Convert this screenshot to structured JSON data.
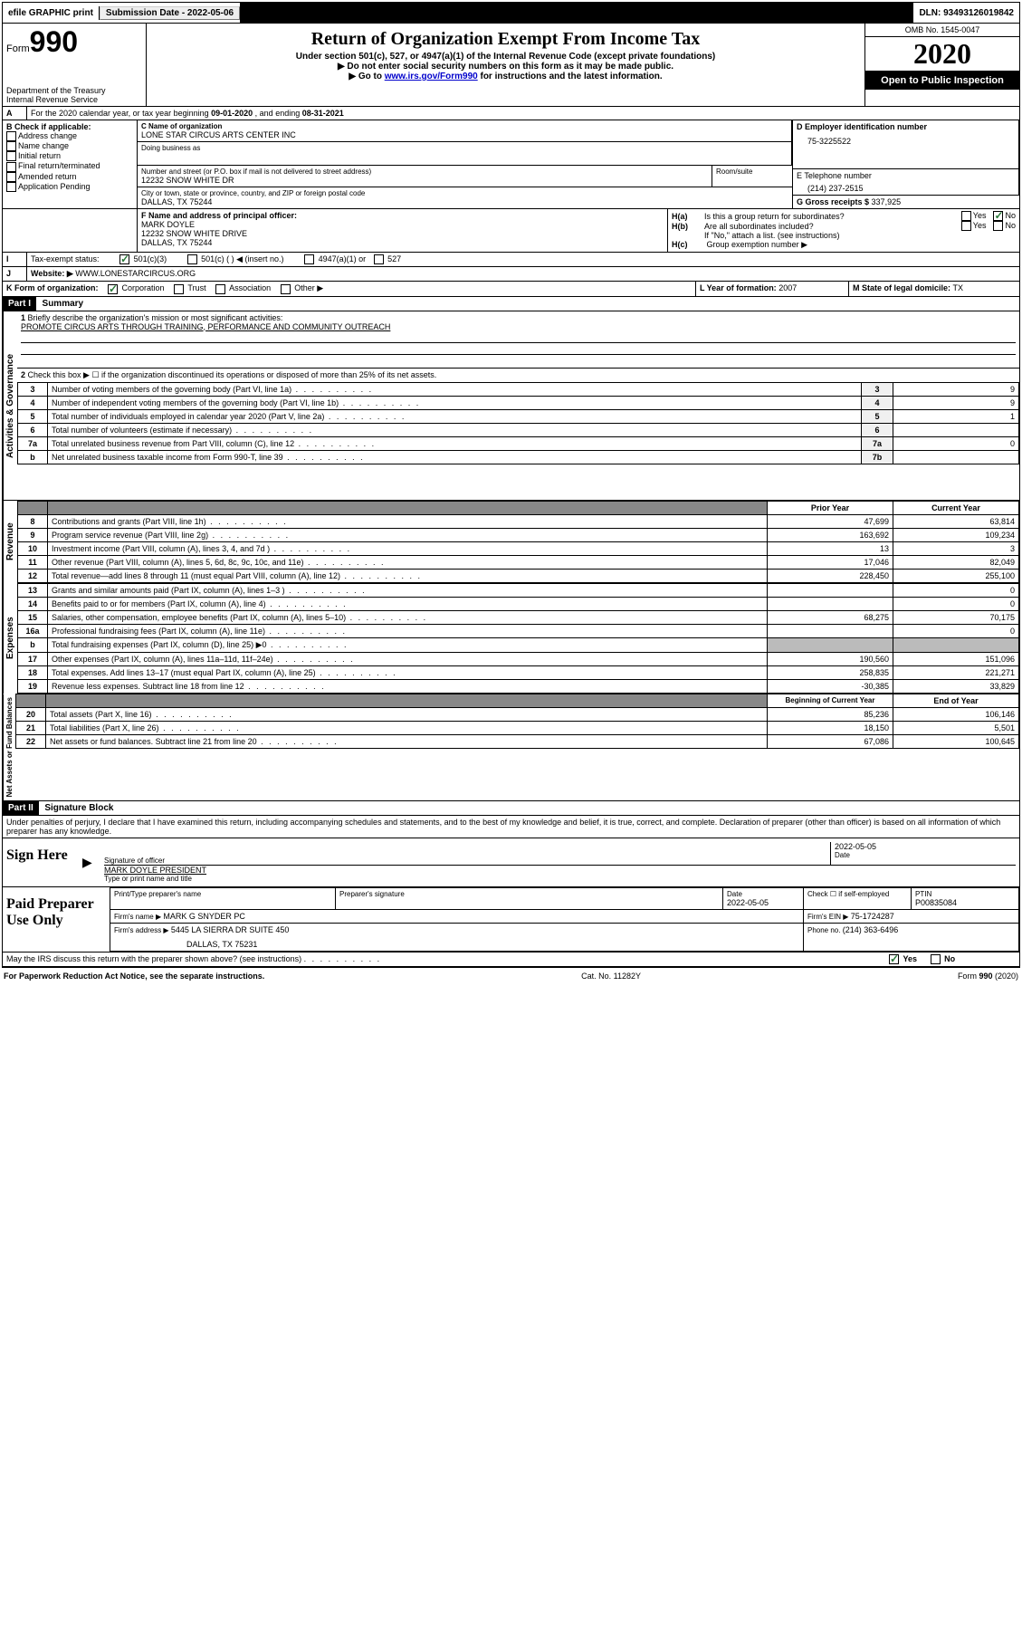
{
  "topbar": {
    "efile": "efile GRAPHIC print",
    "subdate_label": "Submission Date - ",
    "subdate": "2022-05-06",
    "dln_label": "DLN: ",
    "dln": "93493126019842"
  },
  "header": {
    "form_small": "Form",
    "form_big": "990",
    "dept1": "Department of the Treasury",
    "dept2": "Internal Revenue Service",
    "title": "Return of Organization Exempt From Income Tax",
    "sub1": "Under section 501(c), 527, or 4947(a)(1) of the Internal Revenue Code (except private foundations)",
    "sub2": "▶ Do not enter social security numbers on this form as it may be made public.",
    "sub3_pre": "▶ Go to ",
    "sub3_link": "www.irs.gov/Form990",
    "sub3_post": " for instructions and the latest information.",
    "omb": "OMB No. 1545-0047",
    "year": "2020",
    "inspection": "Open to Public Inspection"
  },
  "lineA": {
    "text_pre": "For the 2020 calendar year, or tax year beginning ",
    "beg": "09-01-2020",
    "mid": " , and ending ",
    "end": "08-31-2021"
  },
  "boxB": {
    "label": "B Check if applicable:",
    "opts": [
      "Address change",
      "Name change",
      "Initial return",
      "Final return/terminated",
      "Amended return",
      "Application Pending"
    ]
  },
  "boxC": {
    "name_label": "C Name of organization",
    "name": "LONE STAR CIRCUS ARTS CENTER INC",
    "dba_label": "Doing business as",
    "dba": "",
    "street_label": "Number and street (or P.O. box if mail is not delivered to street address)",
    "room_label": "Room/suite",
    "street": "12232 SNOW WHITE DR",
    "city_label": "City or town, state or province, country, and ZIP or foreign postal code",
    "city": "DALLAS, TX  75244"
  },
  "boxD": {
    "label": "D Employer identification number",
    "value": "75-3225522"
  },
  "boxE": {
    "label": "E Telephone number",
    "value": "(214) 237-2515"
  },
  "boxG": {
    "label": "G Gross receipts $ ",
    "value": "337,925"
  },
  "boxF": {
    "label": "F Name and address of principal officer:",
    "name": "MARK DOYLE",
    "addr1": "12232 SNOW WHITE DRIVE",
    "addr2": "DALLAS, TX  75244"
  },
  "boxH": {
    "a_label": "H(a)",
    "a_text": "Is this a group return for subordinates?",
    "b_label": "H(b)",
    "b_text": "Are all subordinates included?",
    "b_note": "If \"No,\" attach a list. (see instructions)",
    "c_label": "H(c)",
    "c_text": "Group exemption number ▶",
    "yes": "Yes",
    "no": "No"
  },
  "lineI": {
    "label": "I",
    "text": "Tax-exempt status:",
    "opts": [
      "501(c)(3)",
      "501(c) (  ) ◀ (insert no.)",
      "4947(a)(1) or",
      "527"
    ]
  },
  "lineJ": {
    "label": "J",
    "text": "Website: ▶",
    "value": "WWW.LONESTARCIRCUS.ORG"
  },
  "lineK": {
    "label": "K Form of organization:",
    "opts": [
      "Corporation",
      "Trust",
      "Association",
      "Other ▶"
    ]
  },
  "lineL": {
    "label": "L Year of formation: ",
    "value": "2007"
  },
  "lineM": {
    "label": "M State of legal domicile: ",
    "value": "TX"
  },
  "part1": {
    "header": "Part I",
    "title": "Summary",
    "sections": {
      "gov_label": "Activities & Governance",
      "rev_label": "Revenue",
      "exp_label": "Expenses",
      "net_label": "Net Assets or Fund Balances"
    },
    "l1": {
      "num": "1",
      "text": "Briefly describe the organization's mission or most significant activities:",
      "value": "PROMOTE CIRCUS ARTS THROUGH TRAINING, PERFORMANCE AND COMMUNITY OUTREACH"
    },
    "l2": {
      "num": "2",
      "text": "Check this box ▶ ☐  if the organization discontinued its operations or disposed of more than 25% of its net assets."
    },
    "gov_rows": [
      {
        "num": "3",
        "desc": "Number of voting members of the governing body (Part VI, line 1a)",
        "box": "3",
        "val": "9"
      },
      {
        "num": "4",
        "desc": "Number of independent voting members of the governing body (Part VI, line 1b)",
        "box": "4",
        "val": "9"
      },
      {
        "num": "5",
        "desc": "Total number of individuals employed in calendar year 2020 (Part V, line 2a)",
        "box": "5",
        "val": "1"
      },
      {
        "num": "6",
        "desc": "Total number of volunteers (estimate if necessary)",
        "box": "6",
        "val": ""
      },
      {
        "num": "7a",
        "desc": "Total unrelated business revenue from Part VIII, column (C), line 12",
        "box": "7a",
        "val": "0"
      },
      {
        "num": "b",
        "desc": "Net unrelated business taxable income from Form 990-T, line 39",
        "box": "7b",
        "val": ""
      }
    ],
    "col_headers": {
      "prior": "Prior Year",
      "current": "Current Year",
      "beg": "Beginning of Current Year",
      "end": "End of Year"
    },
    "rev_rows": [
      {
        "num": "8",
        "desc": "Contributions and grants (Part VIII, line 1h)",
        "prior": "47,699",
        "cur": "63,814"
      },
      {
        "num": "9",
        "desc": "Program service revenue (Part VIII, line 2g)",
        "prior": "163,692",
        "cur": "109,234"
      },
      {
        "num": "10",
        "desc": "Investment income (Part VIII, column (A), lines 3, 4, and 7d )",
        "prior": "13",
        "cur": "3"
      },
      {
        "num": "11",
        "desc": "Other revenue (Part VIII, column (A), lines 5, 6d, 8c, 9c, 10c, and 11e)",
        "prior": "17,046",
        "cur": "82,049"
      },
      {
        "num": "12",
        "desc": "Total revenue—add lines 8 through 11 (must equal Part VIII, column (A), line 12)",
        "prior": "228,450",
        "cur": "255,100"
      }
    ],
    "exp_rows": [
      {
        "num": "13",
        "desc": "Grants and similar amounts paid (Part IX, column (A), lines 1–3 )",
        "prior": "",
        "cur": "0"
      },
      {
        "num": "14",
        "desc": "Benefits paid to or for members (Part IX, column (A), line 4)",
        "prior": "",
        "cur": "0"
      },
      {
        "num": "15",
        "desc": "Salaries, other compensation, employee benefits (Part IX, column (A), lines 5–10)",
        "prior": "68,275",
        "cur": "70,175"
      },
      {
        "num": "16a",
        "desc": "Professional fundraising fees (Part IX, column (A), line 11e)",
        "prior": "",
        "cur": "0"
      },
      {
        "num": "b",
        "desc": "Total fundraising expenses (Part IX, column (D), line 25) ▶0",
        "prior": "—shade—",
        "cur": "—shade—"
      },
      {
        "num": "17",
        "desc": "Other expenses (Part IX, column (A), lines 11a–11d, 11f–24e)",
        "prior": "190,560",
        "cur": "151,096"
      },
      {
        "num": "18",
        "desc": "Total expenses. Add lines 13–17 (must equal Part IX, column (A), line 25)",
        "prior": "258,835",
        "cur": "221,271"
      },
      {
        "num": "19",
        "desc": "Revenue less expenses. Subtract line 18 from line 12",
        "prior": "-30,385",
        "cur": "33,829"
      }
    ],
    "net_rows": [
      {
        "num": "20",
        "desc": "Total assets (Part X, line 16)",
        "prior": "85,236",
        "cur": "106,146"
      },
      {
        "num": "21",
        "desc": "Total liabilities (Part X, line 26)",
        "prior": "18,150",
        "cur": "5,501"
      },
      {
        "num": "22",
        "desc": "Net assets or fund balances. Subtract line 21 from line 20",
        "prior": "67,086",
        "cur": "100,645"
      }
    ]
  },
  "part2": {
    "header": "Part II",
    "title": "Signature Block",
    "decl": "Under penalties of perjury, I declare that I have examined this return, including accompanying schedules and statements, and to the best of my knowledge and belief, it is true, correct, and complete. Declaration of preparer (other than officer) is based on all information of which preparer has any knowledge."
  },
  "sign": {
    "label": "Sign Here",
    "sig_label": "Signature of officer",
    "date_label": "Date",
    "date": "2022-05-05",
    "name": "MARK DOYLE  PRESIDENT",
    "name_label": "Type or print name and title"
  },
  "preparer": {
    "label": "Paid Preparer Use Only",
    "h_name": "Print/Type preparer's name",
    "h_sig": "Preparer's signature",
    "h_date": "Date",
    "date": "2022-05-05",
    "h_check": "Check ☐ if self-employed",
    "h_ptin": "PTIN",
    "ptin": "P00835084",
    "firm_name_label": "Firm's name    ▶ ",
    "firm_name": "MARK G SNYDER PC",
    "firm_ein_label": "Firm's EIN ▶ ",
    "firm_ein": "75-1724287",
    "firm_addr_label": "Firm's address ▶ ",
    "firm_addr1": "5445 LA SIERRA DR SUITE 450",
    "firm_addr2": "DALLAS, TX  75231",
    "phone_label": "Phone no. ",
    "phone": "(214) 363-6496"
  },
  "discuss": {
    "text": "May the IRS discuss this return with the preparer shown above? (see instructions)",
    "yes": "Yes",
    "no": "No"
  },
  "footer": {
    "left": "For Paperwork Reduction Act Notice, see the separate instructions.",
    "mid": "Cat. No. 11282Y",
    "right_pre": "Form ",
    "right_form": "990",
    "right_post": " (2020)"
  }
}
